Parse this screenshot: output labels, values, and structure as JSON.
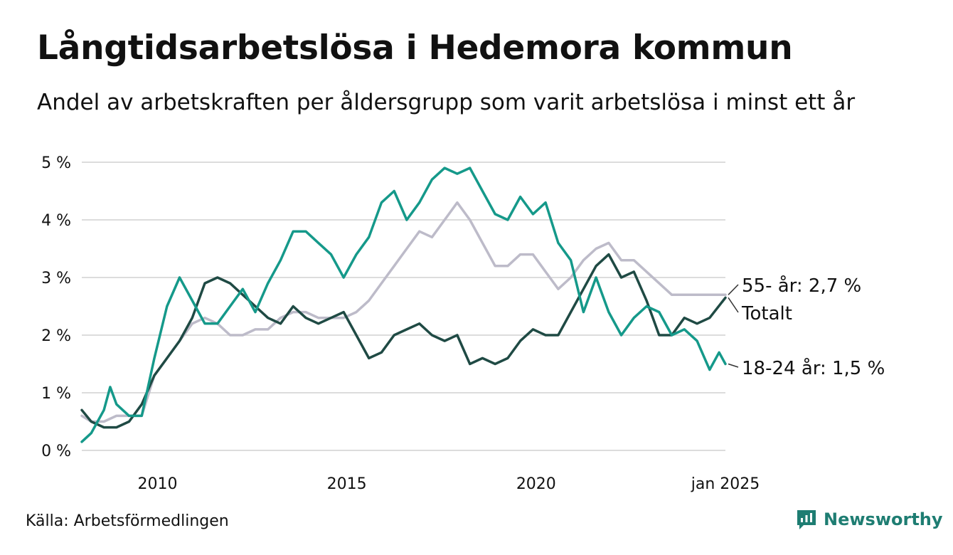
{
  "colors": {
    "age_18_24": "#15998a",
    "age_55_plus": "#bdbbc9",
    "total": "#1f4a44",
    "gridline": "#dcdcdc",
    "brand": "#1e7d72"
  },
  "footer": {
    "source": "Källa: Arbetsförmedlingen",
    "brand": "Newsworthy",
    "brand_icon": "bar-chart-speech-bubble-icon"
  },
  "chart_data": {
    "type": "line",
    "title": "Långtidsarbetslösa i Hedemora kommun",
    "subtitle": "Andel av arbetskraften per åldersgrupp som varit arbetslösa i minst ett år",
    "xlabel": "",
    "ylabel": "",
    "x_range": [
      "2008-01",
      "2025-01"
    ],
    "ylim": [
      0,
      5.5
    ],
    "y_ticks": [
      {
        "value": 0,
        "label": "0 %"
      },
      {
        "value": 1,
        "label": "1 %"
      },
      {
        "value": 2,
        "label": "2 %"
      },
      {
        "value": 3,
        "label": "3 %"
      },
      {
        "value": 4,
        "label": "4 %"
      },
      {
        "value": 5,
        "label": "5 %"
      }
    ],
    "x_ticks": [
      {
        "value": "2010-01",
        "label": "2010"
      },
      {
        "value": "2015-01",
        "label": "2015"
      },
      {
        "value": "2020-01",
        "label": "2020"
      },
      {
        "value": "2025-01",
        "label": "jan 2025"
      }
    ],
    "grid": true,
    "legend": "end-labels",
    "series": [
      {
        "name": "55- år",
        "end_label": "55- år: 2,7 %",
        "color_key": "age_55_plus",
        "points": [
          [
            "2008-01",
            0.6
          ],
          [
            "2008-04",
            0.5
          ],
          [
            "2008-08",
            0.5
          ],
          [
            "2008-12",
            0.6
          ],
          [
            "2009-04",
            0.6
          ],
          [
            "2009-08",
            0.6
          ],
          [
            "2009-12",
            1.3
          ],
          [
            "2010-04",
            1.6
          ],
          [
            "2010-08",
            1.9
          ],
          [
            "2010-12",
            2.2
          ],
          [
            "2011-04",
            2.3
          ],
          [
            "2011-08",
            2.2
          ],
          [
            "2011-12",
            2.0
          ],
          [
            "2012-04",
            2.0
          ],
          [
            "2012-08",
            2.1
          ],
          [
            "2012-12",
            2.1
          ],
          [
            "2013-04",
            2.3
          ],
          [
            "2013-08",
            2.4
          ],
          [
            "2013-12",
            2.4
          ],
          [
            "2014-04",
            2.3
          ],
          [
            "2014-08",
            2.3
          ],
          [
            "2014-12",
            2.3
          ],
          [
            "2015-04",
            2.4
          ],
          [
            "2015-08",
            2.6
          ],
          [
            "2015-12",
            2.9
          ],
          [
            "2016-04",
            3.2
          ],
          [
            "2016-08",
            3.5
          ],
          [
            "2016-12",
            3.8
          ],
          [
            "2017-04",
            3.7
          ],
          [
            "2017-08",
            4.0
          ],
          [
            "2017-12",
            4.3
          ],
          [
            "2018-04",
            4.0
          ],
          [
            "2018-08",
            3.6
          ],
          [
            "2018-12",
            3.2
          ],
          [
            "2019-04",
            3.2
          ],
          [
            "2019-08",
            3.4
          ],
          [
            "2019-12",
            3.4
          ],
          [
            "2020-04",
            3.1
          ],
          [
            "2020-08",
            2.8
          ],
          [
            "2020-12",
            3.0
          ],
          [
            "2021-04",
            3.3
          ],
          [
            "2021-08",
            3.5
          ],
          [
            "2021-12",
            3.6
          ],
          [
            "2022-04",
            3.3
          ],
          [
            "2022-08",
            3.3
          ],
          [
            "2022-12",
            3.1
          ],
          [
            "2023-04",
            2.9
          ],
          [
            "2023-08",
            2.7
          ],
          [
            "2023-12",
            2.7
          ],
          [
            "2024-04",
            2.7
          ],
          [
            "2024-08",
            2.7
          ],
          [
            "2025-01",
            2.7
          ]
        ]
      },
      {
        "name": "Totalt",
        "end_label": "Totalt",
        "color_key": "total",
        "points": [
          [
            "2008-01",
            0.7
          ],
          [
            "2008-04",
            0.5
          ],
          [
            "2008-08",
            0.4
          ],
          [
            "2008-12",
            0.4
          ],
          [
            "2009-04",
            0.5
          ],
          [
            "2009-08",
            0.8
          ],
          [
            "2009-12",
            1.3
          ],
          [
            "2010-04",
            1.6
          ],
          [
            "2010-08",
            1.9
          ],
          [
            "2010-12",
            2.3
          ],
          [
            "2011-04",
            2.9
          ],
          [
            "2011-08",
            3.0
          ],
          [
            "2011-12",
            2.9
          ],
          [
            "2012-04",
            2.7
          ],
          [
            "2012-08",
            2.5
          ],
          [
            "2012-12",
            2.3
          ],
          [
            "2013-04",
            2.2
          ],
          [
            "2013-08",
            2.5
          ],
          [
            "2013-12",
            2.3
          ],
          [
            "2014-04",
            2.2
          ],
          [
            "2014-08",
            2.3
          ],
          [
            "2014-12",
            2.4
          ],
          [
            "2015-04",
            2.0
          ],
          [
            "2015-08",
            1.6
          ],
          [
            "2015-12",
            1.7
          ],
          [
            "2016-04",
            2.0
          ],
          [
            "2016-08",
            2.1
          ],
          [
            "2016-12",
            2.2
          ],
          [
            "2017-04",
            2.0
          ],
          [
            "2017-08",
            1.9
          ],
          [
            "2017-12",
            2.0
          ],
          [
            "2018-04",
            1.5
          ],
          [
            "2018-08",
            1.6
          ],
          [
            "2018-12",
            1.5
          ],
          [
            "2019-04",
            1.6
          ],
          [
            "2019-08",
            1.9
          ],
          [
            "2019-12",
            2.1
          ],
          [
            "2020-04",
            2.0
          ],
          [
            "2020-08",
            2.0
          ],
          [
            "2020-12",
            2.4
          ],
          [
            "2021-04",
            2.8
          ],
          [
            "2021-08",
            3.2
          ],
          [
            "2021-12",
            3.4
          ],
          [
            "2022-04",
            3.0
          ],
          [
            "2022-08",
            3.1
          ],
          [
            "2022-12",
            2.6
          ],
          [
            "2023-04",
            2.0
          ],
          [
            "2023-08",
            2.0
          ],
          [
            "2023-12",
            2.3
          ],
          [
            "2024-04",
            2.2
          ],
          [
            "2024-08",
            2.3
          ],
          [
            "2025-01",
            2.65
          ]
        ]
      },
      {
        "name": "18-24 år",
        "end_label": "18-24 år: 1,5 %",
        "color_key": "age_18_24",
        "points": [
          [
            "2008-01",
            0.15
          ],
          [
            "2008-04",
            0.3
          ],
          [
            "2008-08",
            0.7
          ],
          [
            "2008-10",
            1.1
          ],
          [
            "2008-12",
            0.8
          ],
          [
            "2009-04",
            0.6
          ],
          [
            "2009-08",
            0.6
          ],
          [
            "2009-12",
            1.6
          ],
          [
            "2010-04",
            2.5
          ],
          [
            "2010-08",
            3.0
          ],
          [
            "2010-12",
            2.6
          ],
          [
            "2011-04",
            2.2
          ],
          [
            "2011-08",
            2.2
          ],
          [
            "2011-12",
            2.5
          ],
          [
            "2012-04",
            2.8
          ],
          [
            "2012-08",
            2.4
          ],
          [
            "2012-12",
            2.9
          ],
          [
            "2013-04",
            3.3
          ],
          [
            "2013-08",
            3.8
          ],
          [
            "2013-12",
            3.8
          ],
          [
            "2014-04",
            3.6
          ],
          [
            "2014-08",
            3.4
          ],
          [
            "2014-12",
            3.0
          ],
          [
            "2015-04",
            3.4
          ],
          [
            "2015-08",
            3.7
          ],
          [
            "2015-12",
            4.3
          ],
          [
            "2016-04",
            4.5
          ],
          [
            "2016-08",
            4.0
          ],
          [
            "2016-12",
            4.3
          ],
          [
            "2017-04",
            4.7
          ],
          [
            "2017-08",
            4.9
          ],
          [
            "2017-12",
            4.8
          ],
          [
            "2018-04",
            4.9
          ],
          [
            "2018-08",
            4.5
          ],
          [
            "2018-12",
            4.1
          ],
          [
            "2019-04",
            4.0
          ],
          [
            "2019-08",
            4.4
          ],
          [
            "2019-12",
            4.1
          ],
          [
            "2020-04",
            4.3
          ],
          [
            "2020-08",
            3.6
          ],
          [
            "2020-12",
            3.3
          ],
          [
            "2021-04",
            2.4
          ],
          [
            "2021-08",
            3.0
          ],
          [
            "2021-12",
            2.4
          ],
          [
            "2022-04",
            2.0
          ],
          [
            "2022-08",
            2.3
          ],
          [
            "2022-12",
            2.5
          ],
          [
            "2023-04",
            2.4
          ],
          [
            "2023-08",
            2.0
          ],
          [
            "2023-12",
            2.1
          ],
          [
            "2024-04",
            1.9
          ],
          [
            "2024-08",
            1.4
          ],
          [
            "2024-11",
            1.7
          ],
          [
            "2025-01",
            1.5
          ]
        ]
      }
    ]
  }
}
